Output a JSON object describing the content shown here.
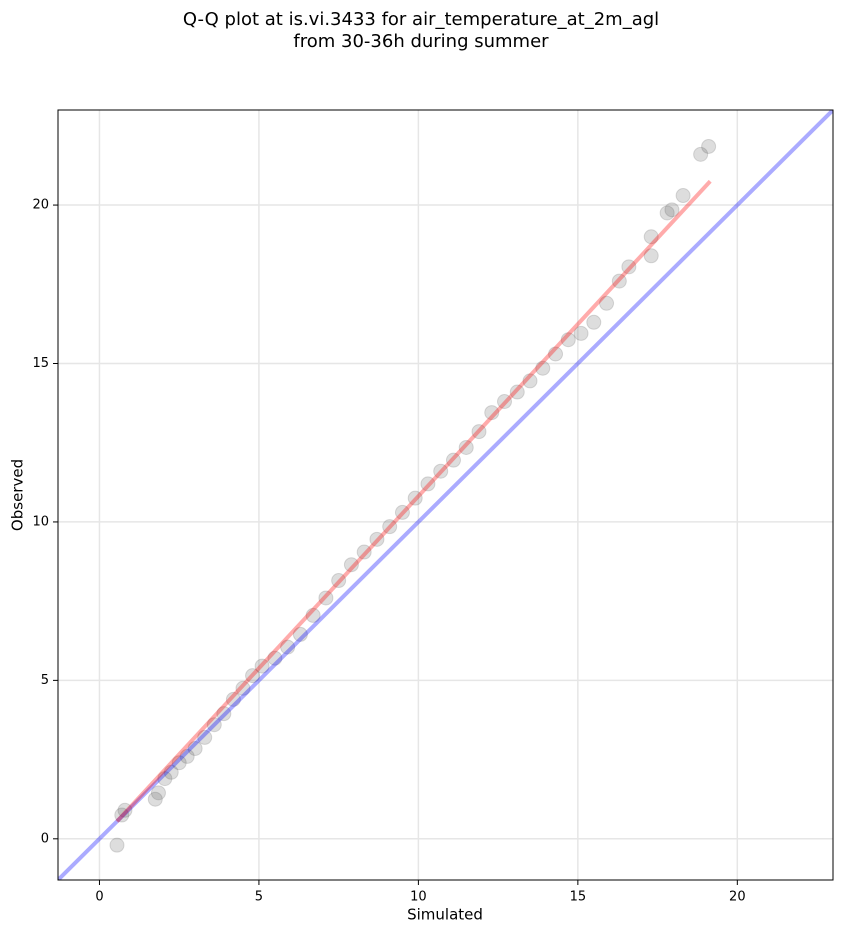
{
  "chart_data": {
    "type": "scatter",
    "title": [
      "Q-Q plot at is.vi.3433 for air_temperature_at_2m_agl",
      "from 30-36h during summer"
    ],
    "x_label": "Simulated",
    "y_label": "Observed",
    "xlim": [
      -1.3,
      23
    ],
    "ylim": [
      -1.3,
      23
    ],
    "xticks": [
      0,
      5,
      10,
      15,
      20
    ],
    "yticks": [
      0,
      5,
      10,
      15,
      20
    ],
    "grid": true,
    "point_color": "#555555",
    "x": [
      0.55,
      0.7,
      0.8,
      1.75,
      1.85,
      2.05,
      2.25,
      2.5,
      2.75,
      3.0,
      3.3,
      3.6,
      3.9,
      4.2,
      4.5,
      4.8,
      5.1,
      5.5,
      5.9,
      6.3,
      6.7,
      7.1,
      7.5,
      7.9,
      8.3,
      8.7,
      9.1,
      9.5,
      9.9,
      10.3,
      10.7,
      11.1,
      11.5,
      11.9,
      12.3,
      12.7,
      13.1,
      13.5,
      13.9,
      14.3,
      14.7,
      15.1,
      15.5,
      15.9,
      16.3,
      16.6,
      17.3,
      17.3,
      17.8,
      17.95,
      18.3,
      18.85,
      19.1
    ],
    "y": [
      -0.2,
      0.75,
      0.9,
      1.25,
      1.45,
      1.9,
      2.1,
      2.4,
      2.6,
      2.85,
      3.2,
      3.6,
      3.95,
      4.4,
      4.75,
      5.15,
      5.45,
      5.7,
      6.05,
      6.45,
      7.05,
      7.6,
      8.15,
      8.65,
      9.05,
      9.45,
      9.85,
      10.3,
      10.75,
      11.2,
      11.6,
      11.95,
      12.35,
      12.85,
      13.45,
      13.8,
      14.1,
      14.45,
      14.85,
      15.3,
      15.75,
      15.95,
      16.3,
      16.9,
      17.6,
      18.05,
      18.4,
      19.0,
      19.75,
      19.85,
      20.3,
      21.6,
      21.85
    ],
    "lines": [
      {
        "color": "#0000ff",
        "x": [
          -1.3,
          23
        ],
        "y": [
          -1.3,
          23
        ]
      },
      {
        "color": "#ff0000",
        "x": [
          0.55,
          19.15
        ],
        "y": [
          0.55,
          20.75
        ]
      }
    ]
  }
}
